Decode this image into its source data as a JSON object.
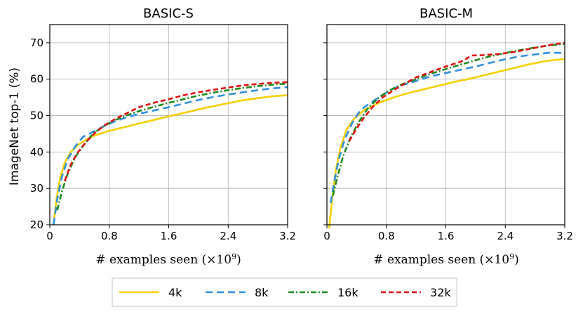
{
  "chart_data": [
    {
      "type": "line",
      "title": "BASIC-S",
      "xlabel": "# examples seen (×10⁹)",
      "ylabel": "ImageNet top-1 (%)",
      "xlim": [
        0,
        3.2
      ],
      "ylim": [
        20,
        75
      ],
      "xticks": [
        "0",
        "0.8",
        "1.6",
        "2.4",
        "3.2"
      ],
      "yticks": [
        "20",
        "30",
        "40",
        "50",
        "60",
        "70"
      ],
      "grid": true,
      "series": [
        {
          "name": "4k",
          "color": "#f5d000",
          "dash": "solid",
          "points": [
            [
              0.05,
              20
            ],
            [
              0.09,
              27
            ],
            [
              0.14,
              33
            ],
            [
              0.2,
              37
            ],
            [
              0.28,
              40
            ],
            [
              0.38,
              42
            ],
            [
              0.5,
              43.5
            ],
            [
              0.6,
              44.5
            ],
            [
              0.8,
              45.8
            ],
            [
              1.0,
              46.8
            ],
            [
              1.2,
              47.8
            ],
            [
              1.4,
              48.8
            ],
            [
              1.6,
              49.8
            ],
            [
              1.8,
              50.7
            ],
            [
              2.0,
              51.7
            ],
            [
              2.2,
              52.6
            ],
            [
              2.4,
              53.4
            ],
            [
              2.6,
              54.2
            ],
            [
              2.8,
              54.8
            ],
            [
              3.0,
              55.3
            ],
            [
              3.2,
              55.6
            ]
          ]
        },
        {
          "name": "8k",
          "color": "#2f8fe0",
          "dash": "10,6",
          "points": [
            [
              0.05,
              20
            ],
            [
              0.1,
              27
            ],
            [
              0.16,
              33
            ],
            [
              0.24,
              38
            ],
            [
              0.34,
              41.5
            ],
            [
              0.45,
              44.2
            ],
            [
              0.55,
              45.2
            ],
            [
              0.7,
              46.8
            ],
            [
              0.85,
              48.2
            ],
            [
              1.0,
              49.3
            ],
            [
              1.2,
              50.5
            ],
            [
              1.4,
              51.4
            ],
            [
              1.6,
              52.3
            ],
            [
              1.8,
              53.3
            ],
            [
              2.0,
              54.3
            ],
            [
              2.2,
              55.1
            ],
            [
              2.4,
              55.8
            ],
            [
              2.6,
              56.4
            ],
            [
              2.8,
              57.0
            ],
            [
              3.0,
              57.5
            ],
            [
              3.2,
              57.8
            ]
          ]
        },
        {
          "name": "16k",
          "color": "#1f8a1f",
          "dash": "8,3,2,3",
          "points": [
            [
              0.1,
              24
            ],
            [
              0.16,
              29
            ],
            [
              0.24,
              34
            ],
            [
              0.34,
              38.5
            ],
            [
              0.45,
              41.8
            ],
            [
              0.58,
              45
            ],
            [
              0.7,
              46.8
            ],
            [
              0.85,
              48.5
            ],
            [
              1.0,
              49.8
            ],
            [
              1.2,
              51.2
            ],
            [
              1.4,
              52.4
            ],
            [
              1.6,
              53.5
            ],
            [
              1.8,
              54.5
            ],
            [
              2.0,
              55.5
            ],
            [
              2.2,
              56.3
            ],
            [
              2.4,
              57.0
            ],
            [
              2.6,
              57.6
            ],
            [
              2.8,
              58.1
            ],
            [
              3.0,
              58.5
            ],
            [
              3.2,
              58.8
            ]
          ]
        },
        {
          "name": "32k",
          "color": "#e01010",
          "dash": "7,4",
          "points": [
            [
              0.2,
              32
            ],
            [
              0.28,
              36.5
            ],
            [
              0.38,
              40
            ],
            [
              0.5,
              43
            ],
            [
              0.62,
              45.5
            ],
            [
              0.75,
              47.5
            ],
            [
              0.9,
              49.3
            ],
            [
              1.05,
              50.8
            ],
            [
              1.2,
              52.3
            ],
            [
              1.4,
              53.5
            ],
            [
              1.6,
              54.5
            ],
            [
              1.8,
              55.6
            ],
            [
              2.0,
              56.4
            ],
            [
              2.2,
              57.1
            ],
            [
              2.4,
              57.7
            ],
            [
              2.6,
              58.3
            ],
            [
              2.8,
              58.7
            ],
            [
              3.0,
              59.0
            ],
            [
              3.2,
              59.2
            ]
          ]
        }
      ]
    },
    {
      "type": "line",
      "title": "BASIC-M",
      "xlabel": "# examples seen (×10⁹)",
      "ylabel": "",
      "xlim": [
        0,
        3.2
      ],
      "ylim": [
        20,
        75
      ],
      "xticks": [
        "0",
        "0.8",
        "1.6",
        "2.4",
        "3.2"
      ],
      "yticks": [
        "20",
        "30",
        "40",
        "50",
        "60",
        "70"
      ],
      "grid": true,
      "series": [
        {
          "name": "4k",
          "color": "#f5d000",
          "dash": "solid",
          "points": [
            [
              0.03,
              19
            ],
            [
              0.07,
              27
            ],
            [
              0.12,
              35
            ],
            [
              0.18,
              41
            ],
            [
              0.26,
              46
            ],
            [
              0.36,
              49
            ],
            [
              0.5,
              51.5
            ],
            [
              0.7,
              53.5
            ],
            [
              0.9,
              55
            ],
            [
              1.1,
              56.2
            ],
            [
              1.3,
              57.2
            ],
            [
              1.5,
              58.2
            ],
            [
              1.7,
              59.2
            ],
            [
              1.9,
              60
            ],
            [
              2.1,
              61
            ],
            [
              2.3,
              62
            ],
            [
              2.5,
              63
            ],
            [
              2.7,
              64
            ],
            [
              2.9,
              64.8
            ],
            [
              3.05,
              65.3
            ],
            [
              3.2,
              65.5
            ]
          ]
        },
        {
          "name": "8k",
          "color": "#2f8fe0",
          "dash": "10,6",
          "points": [
            [
              0.05,
              26
            ],
            [
              0.1,
              32
            ],
            [
              0.16,
              38
            ],
            [
              0.24,
              43.5
            ],
            [
              0.34,
              48
            ],
            [
              0.45,
              51.5
            ],
            [
              0.55,
              53
            ],
            [
              0.7,
              55
            ],
            [
              0.85,
              57
            ],
            [
              1.0,
              58.3
            ],
            [
              1.2,
              59.5
            ],
            [
              1.4,
              60.8
            ],
            [
              1.6,
              61.7
            ],
            [
              1.8,
              62.6
            ],
            [
              2.0,
              63.5
            ],
            [
              2.2,
              64.5
            ],
            [
              2.4,
              65.5
            ],
            [
              2.6,
              66.3
            ],
            [
              2.8,
              66.8
            ],
            [
              3.0,
              67.3
            ],
            [
              3.2,
              67.2
            ]
          ]
        },
        {
          "name": "16k",
          "color": "#1f8a1f",
          "dash": "8,3,2,3",
          "points": [
            [
              0.08,
              28
            ],
            [
              0.14,
              33
            ],
            [
              0.22,
              39
            ],
            [
              0.32,
              44
            ],
            [
              0.42,
              48
            ],
            [
              0.55,
              52
            ],
            [
              0.7,
              55
            ],
            [
              0.85,
              57
            ],
            [
              1.0,
              58.5
            ],
            [
              1.2,
              60
            ],
            [
              1.4,
              61.5
            ],
            [
              1.6,
              62.8
            ],
            [
              1.8,
              64
            ],
            [
              2.0,
              65.2
            ],
            [
              2.2,
              66.3
            ],
            [
              2.4,
              67.2
            ],
            [
              2.6,
              68
            ],
            [
              2.8,
              68.7
            ],
            [
              3.0,
              69.3
            ],
            [
              3.2,
              69.7
            ]
          ]
        },
        {
          "name": "32k",
          "color": "#e01010",
          "dash": "7,4",
          "points": [
            [
              0.3,
              43
            ],
            [
              0.4,
              46.5
            ],
            [
              0.5,
              49.5
            ],
            [
              0.62,
              52.5
            ],
            [
              0.75,
              55
            ],
            [
              0.9,
              57
            ],
            [
              1.05,
              58.8
            ],
            [
              1.2,
              60.5
            ],
            [
              1.4,
              62
            ],
            [
              1.6,
              63.5
            ],
            [
              1.8,
              64.8
            ],
            [
              1.95,
              66.5
            ],
            [
              2.1,
              66.6
            ],
            [
              2.3,
              66.9
            ],
            [
              2.5,
              67.4
            ],
            [
              2.7,
              68.2
            ],
            [
              2.9,
              69
            ],
            [
              3.05,
              69.6
            ],
            [
              3.2,
              70
            ]
          ]
        }
      ]
    }
  ],
  "legend": [
    {
      "label": "4k",
      "color": "#f5d000",
      "dash": "solid"
    },
    {
      "label": "8k",
      "color": "#2f8fe0",
      "dash": "10,6"
    },
    {
      "label": "16k",
      "color": "#1f8a1f",
      "dash": "8,3,2,3"
    },
    {
      "label": "32k",
      "color": "#e01010",
      "dash": "7,4"
    }
  ],
  "xlabel_prefix": "# examples seen (×10",
  "xlabel_exp": "9",
  "xlabel_suffix": ")",
  "ylabel_left": "ImageNet top-1 (%)"
}
